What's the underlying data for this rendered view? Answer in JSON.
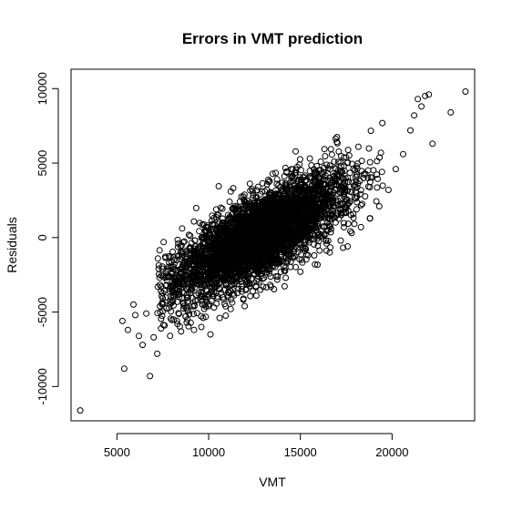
{
  "chart_data": {
    "type": "scatter",
    "title": "Errors in VMT prediction",
    "xlabel": "VMT",
    "ylabel": "Residuals",
    "xlim": [
      2500,
      24500
    ],
    "ylim": [
      -12300,
      11300
    ],
    "x_ticks": [
      5000,
      10000,
      15000,
      20000
    ],
    "y_ticks": [
      -10000,
      -5000,
      0,
      5000,
      10000
    ],
    "x_tick_labels": [
      "5000",
      "10000",
      "15000",
      "20000"
    ],
    "y_tick_labels": [
      "-10000",
      "-5000",
      "0",
      "5000",
      "10000"
    ],
    "grid": false,
    "legend": "none",
    "marker": "open-circle",
    "point_color": "#000000",
    "points_x": [
      3000,
      5300,
      5400,
      5600,
      5900,
      6000,
      6200,
      6400,
      6600,
      6800,
      7000,
      7200,
      7400,
      7600,
      7900,
      8100,
      8300,
      8500,
      8800,
      9200,
      9600,
      10100,
      10600,
      11200,
      11900,
      12600,
      13400,
      14200,
      15000,
      15800,
      16600,
      17200,
      17800,
      18300,
      18800,
      19300,
      19800,
      20200,
      20600,
      21000,
      21200,
      21400,
      21600,
      21800,
      22000,
      22200,
      23200,
      24000
    ],
    "points_y": [
      -11600,
      -5600,
      -8800,
      -6200,
      -4500,
      -5200,
      -6600,
      -7200,
      -5100,
      -9300,
      -6700,
      -7800,
      -6100,
      -5900,
      -6600,
      -5500,
      -5800,
      -6300,
      -5700,
      -6200,
      -6000,
      -6500,
      -5400,
      -4800,
      -4100,
      -3900,
      -3300,
      -2700,
      -2300,
      -1800,
      -1000,
      -200,
      300,
      700,
      1300,
      2100,
      3200,
      4600,
      5600,
      7200,
      8200,
      9300,
      8800,
      9500,
      9600,
      6300,
      8400,
      9800
    ],
    "cloud_note": "dense overlapping cloud of several thousand points, roughly following residual ≈ 0.65 × (VMT − 12500), spread ≈ ±2000"
  }
}
